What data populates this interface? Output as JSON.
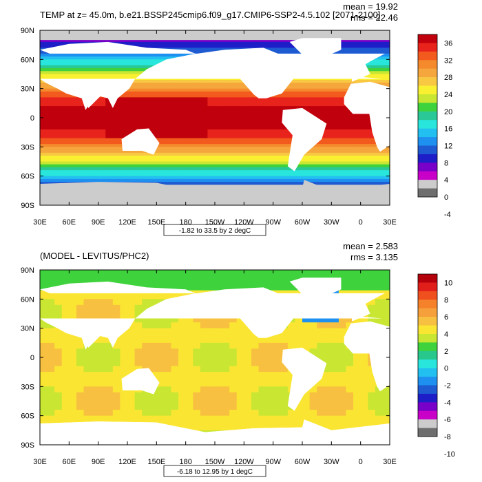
{
  "chart_data": [
    {
      "type": "heatmap",
      "title": "TEMP at z=  45.0m, b.e21.BSSP245cmip6.f09_g17.CMIP6-SSP2-4.5.102 [2071-2100]",
      "stats": [
        "mean = 19.92",
        "rms = 22.46"
      ],
      "footnote": "-1.82 to 33.5 by 2 degC",
      "xlabel": "",
      "ylabel": "",
      "x_ticks": [
        "30E",
        "60E",
        "90E",
        "120E",
        "150E",
        "180",
        "150W",
        "120W",
        "90W",
        "60W",
        "30W",
        "0",
        "30E"
      ],
      "y_ticks": [
        "90N",
        "60N",
        "30N",
        "0",
        "30S",
        "60S",
        "90S"
      ],
      "colorbar": {
        "labels": [
          "36",
          "32",
          "28",
          "24",
          "20",
          "16",
          "12",
          "8",
          "4",
          "0",
          "-4"
        ],
        "colors": [
          "#c0000c",
          "#e8231c",
          "#f25a1e",
          "#f58a2c",
          "#f5a63c",
          "#f8c842",
          "#faf032",
          "#c8e632",
          "#3ed23c",
          "#2ac896",
          "#28e6dc",
          "#22c0f0",
          "#1e90f0",
          "#1e5ad2",
          "#1e1ec8",
          "#7800c8",
          "#c800c8",
          "#cccccc",
          "#6e6e6e"
        ]
      }
    },
    {
      "type": "heatmap",
      "title": "(MODEL - LEVITUS/PHC2)",
      "stats": [
        "mean = 2.583",
        "rms = 3.135"
      ],
      "footnote": "-6.18 to 12.95 by 1 degC",
      "xlabel": "",
      "ylabel": "",
      "x_ticks": [
        "30E",
        "60E",
        "90E",
        "120E",
        "150E",
        "180",
        "150W",
        "120W",
        "90W",
        "60W",
        "30W",
        "0",
        "30E"
      ],
      "y_ticks": [
        "90N",
        "60N",
        "30N",
        "0",
        "30S",
        "60S",
        "90S"
      ],
      "colorbar": {
        "labels": [
          "10",
          "8",
          "6",
          "4",
          "2",
          "0",
          "-2",
          "-4",
          "-6",
          "-8",
          "-10"
        ],
        "colors": [
          "#b4000a",
          "#e01e1a",
          "#f0501e",
          "#f5822a",
          "#f5a03a",
          "#f8c040",
          "#fae632",
          "#c8e632",
          "#3ed23c",
          "#28c88c",
          "#28e6dc",
          "#22c0f0",
          "#1e90f0",
          "#1e5ad2",
          "#1e1ec8",
          "#7800c8",
          "#c800c8",
          "#cccccc",
          "#6e6e6e"
        ]
      }
    }
  ]
}
